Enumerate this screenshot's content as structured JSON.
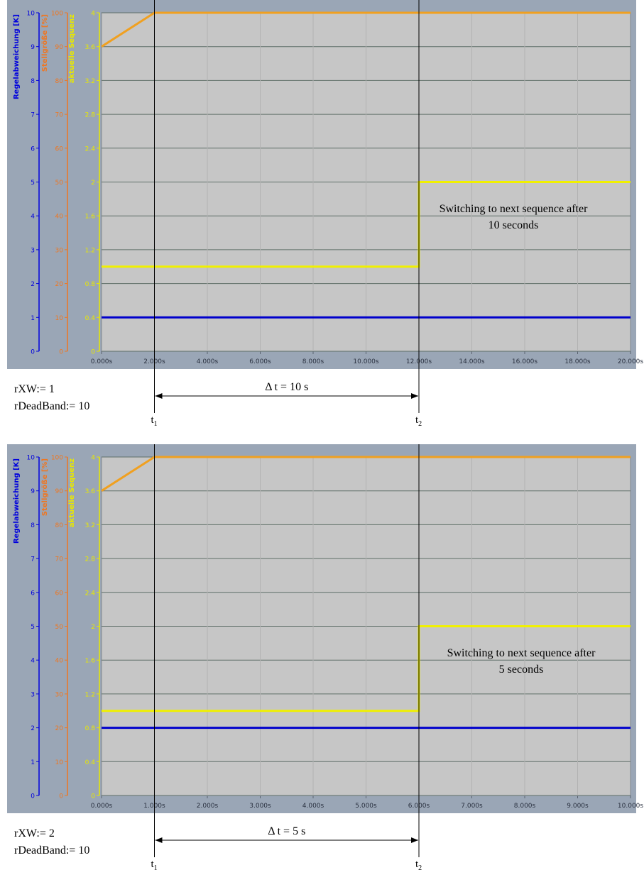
{
  "chart_data": [
    {
      "type": "line",
      "y_axes": [
        {
          "label": "Regelabweichung [K]",
          "color": "#0000dd",
          "ticks": [
            "0",
            "1",
            "2",
            "3",
            "4",
            "5",
            "6",
            "7",
            "8",
            "9",
            "10"
          ],
          "ylim": [
            0,
            10
          ]
        },
        {
          "label": "Stellgröße [%]",
          "color": "#ee7722",
          "ticks": [
            "0",
            "10",
            "20",
            "30",
            "40",
            "50",
            "60",
            "70",
            "80",
            "90",
            "100"
          ],
          "ylim": [
            0,
            100
          ]
        },
        {
          "label": "aktuelle Sequenz",
          "color": "#e8e800",
          "ticks": [
            "0",
            "0.4",
            "0.8",
            "1.2",
            "1.6",
            "2",
            "2.4",
            "2.8",
            "3.2",
            "3.6",
            "4"
          ],
          "ylim": [
            0,
            4
          ]
        }
      ],
      "x_ticks": [
        "0.000s",
        "2.000s",
        "4.000s",
        "6.000s",
        "8.000s",
        "10.000s",
        "12.000s",
        "14.000s",
        "16.000s",
        "18.000s",
        "20.000s"
      ],
      "xlim": [
        0,
        20
      ],
      "grid": true,
      "series": [
        {
          "color": "#f0a020",
          "axis": 2,
          "x": [
            0,
            2,
            20
          ],
          "y": [
            3.6,
            4,
            4
          ]
        },
        {
          "color": "#f0f000",
          "axis": 2,
          "x": [
            0,
            12,
            12,
            20
          ],
          "y": [
            1,
            1,
            2,
            2
          ]
        },
        {
          "color": "#0000cc",
          "axis": 2,
          "x": [
            0,
            20
          ],
          "y": [
            0.4,
            0.4
          ]
        }
      ],
      "annotation": {
        "line1": "Switching to next sequence after",
        "line2": "10 seconds"
      },
      "params": {
        "line1": "rXW:= 1",
        "line2": "rDeadBand:= 10"
      },
      "delta": "Δ t = 10 s",
      "t1": {
        "x": 2,
        "base": "t",
        "sub": "1"
      },
      "t2": {
        "x": 12,
        "base": "t",
        "sub": "2"
      }
    },
    {
      "type": "line",
      "y_axes": [
        {
          "label": "Regelabweichung [K]",
          "color": "#0000dd",
          "ticks": [
            "0",
            "1",
            "2",
            "3",
            "4",
            "5",
            "6",
            "7",
            "8",
            "9",
            "10"
          ],
          "ylim": [
            0,
            10
          ]
        },
        {
          "label": "Stellgröße [%]",
          "color": "#ee7722",
          "ticks": [
            "0",
            "10",
            "20",
            "30",
            "40",
            "50",
            "60",
            "70",
            "80",
            "90",
            "100"
          ],
          "ylim": [
            0,
            100
          ]
        },
        {
          "label": "aktuelle Sequenz",
          "color": "#e8e800",
          "ticks": [
            "0",
            "0.4",
            "0.8",
            "1.2",
            "1.6",
            "2",
            "2.4",
            "2.8",
            "3.2",
            "3.6",
            "4"
          ],
          "ylim": [
            0,
            4
          ]
        }
      ],
      "x_ticks": [
        "0.000s",
        "1.000s",
        "2.000s",
        "3.000s",
        "4.000s",
        "5.000s",
        "6.000s",
        "7.000s",
        "8.000s",
        "9.000s",
        "10.000s"
      ],
      "xlim": [
        0,
        10
      ],
      "grid": true,
      "series": [
        {
          "color": "#f0a020",
          "axis": 2,
          "x": [
            0,
            1,
            10
          ],
          "y": [
            3.6,
            4,
            4
          ]
        },
        {
          "color": "#f0f000",
          "axis": 2,
          "x": [
            0,
            6,
            6,
            10
          ],
          "y": [
            1,
            1,
            2,
            2
          ]
        },
        {
          "color": "#0000cc",
          "axis": 2,
          "x": [
            0,
            10
          ],
          "y": [
            0.8,
            0.8
          ]
        }
      ],
      "annotation": {
        "line1": "Switching to next sequence after",
        "line2": "5 seconds"
      },
      "params": {
        "line1": "rXW:= 2",
        "line2": "rDeadBand:= 10"
      },
      "delta": "Δ t = 5 s",
      "t1": {
        "x": 1,
        "base": "t",
        "sub": "1"
      },
      "t2": {
        "x": 6,
        "base": "t",
        "sub": "2"
      }
    }
  ]
}
